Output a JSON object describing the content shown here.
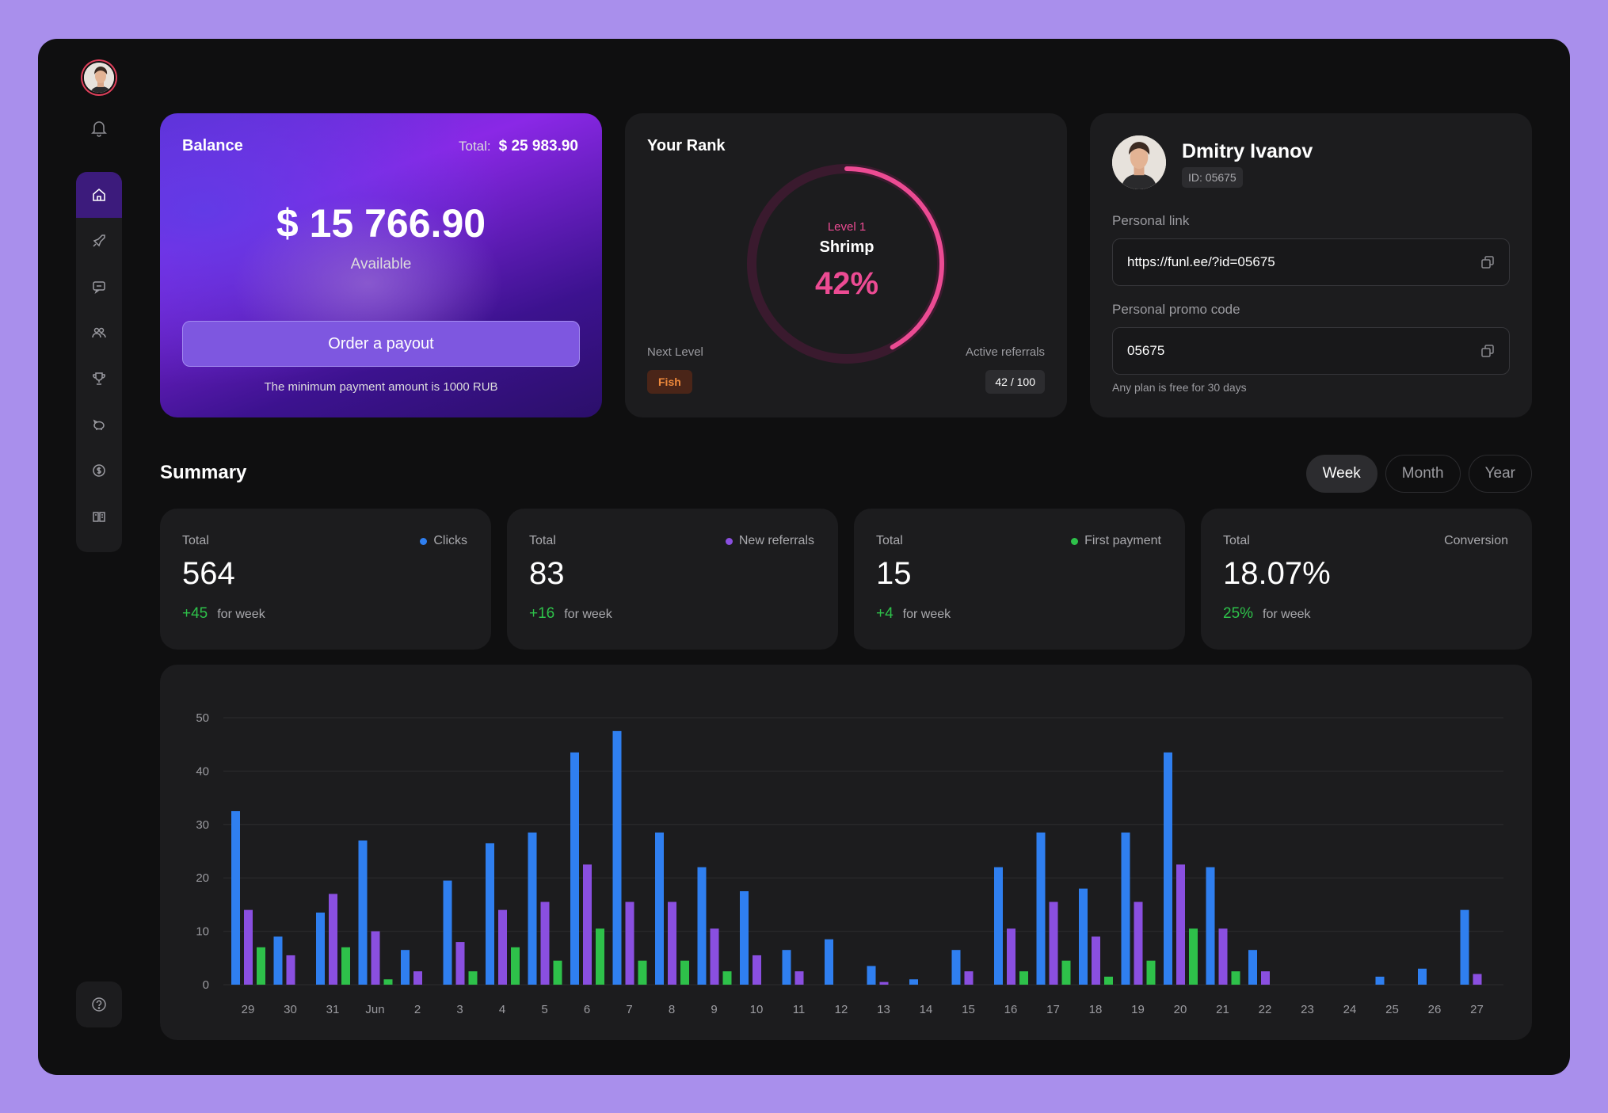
{
  "sidebar": {
    "items": [
      "home-icon",
      "rocket-icon",
      "chat-icon",
      "users-icon",
      "trophy-icon",
      "piggy-bank-icon",
      "coin-icon",
      "book-icon"
    ],
    "help": "help-icon"
  },
  "balance": {
    "title": "Balance",
    "total_label": "Total:",
    "total_value": "$ 25 983.90",
    "amount": "$ 15 766.90",
    "available_label": "Available",
    "payout_button": "Order a payout",
    "min_note": "The minimum payment amount is 1000 RUB"
  },
  "rank": {
    "title": "Your Rank",
    "level": "Level 1",
    "name": "Shrimp",
    "percent": "42%",
    "progress": 0.42,
    "next_level_label": "Next Level",
    "next_level": "Fish",
    "active_referrals_label": "Active referrals",
    "active_referrals": "42 / 100"
  },
  "profile": {
    "name": "Dmitry Ivanov",
    "id": "ID: 05675",
    "personal_link_label": "Personal link",
    "personal_link": "https://funl.ee/?id=05675",
    "promo_label": "Personal promo code",
    "promo_code": "05675",
    "free_note": "Any plan is free for 30 days"
  },
  "summary": {
    "title": "Summary",
    "tabs": [
      "Week",
      "Month",
      "Year"
    ],
    "active_tab": "Week",
    "stats": [
      {
        "total_label": "Total",
        "legend": "Clicks",
        "color": "#2f7ff0",
        "value": "564",
        "delta": "+45",
        "delta_label": "for week"
      },
      {
        "total_label": "Total",
        "legend": "New referrals",
        "color": "#8a4fe0",
        "value": "83",
        "delta": "+16",
        "delta_label": "for week"
      },
      {
        "total_label": "Total",
        "legend": "First payment",
        "color": "#2ec14a",
        "value": "15",
        "delta": "+4",
        "delta_label": "for week"
      },
      {
        "total_label": "Total",
        "legend": "Conversion",
        "color": "",
        "value": "18.07%",
        "delta": "25%",
        "delta_label": "for week"
      }
    ]
  },
  "colors": {
    "clicks": "#2f7ff0",
    "referrals": "#8a4fe0",
    "payments": "#2ec14a",
    "accent": "#ec4b93",
    "fish": "#f08a3c"
  },
  "chart_data": {
    "type": "bar",
    "categories": [
      "29",
      "30",
      "31",
      "Jun",
      "2",
      "3",
      "4",
      "5",
      "6",
      "7",
      "8",
      "9",
      "10",
      "11",
      "12",
      "13",
      "14",
      "15",
      "16",
      "17",
      "18",
      "19",
      "20",
      "21",
      "22",
      "23",
      "24",
      "25",
      "26",
      "27"
    ],
    "series": [
      {
        "name": "Clicks",
        "color": "#2f7ff0",
        "values": [
          32.5,
          9,
          13.5,
          27,
          6.5,
          19.5,
          26.5,
          28.5,
          43.5,
          47.5,
          28.5,
          22,
          17.5,
          6.5,
          8.5,
          3.5,
          1,
          6.5,
          22,
          28.5,
          18,
          28.5,
          43.5,
          22,
          6.5,
          0,
          0,
          1.5,
          3,
          14
        ]
      },
      {
        "name": "New referrals",
        "color": "#8a4fe0",
        "values": [
          14,
          5.5,
          17,
          10,
          2.5,
          8,
          14,
          15.5,
          22.5,
          15.5,
          15.5,
          10.5,
          5.5,
          2.5,
          0,
          0.5,
          0,
          2.5,
          10.5,
          15.5,
          9,
          15.5,
          22.5,
          10.5,
          2.5,
          0,
          0,
          0,
          0,
          2
        ]
      },
      {
        "name": "First payment",
        "color": "#2ec14a",
        "values": [
          7,
          0,
          7,
          1,
          0,
          2.5,
          7,
          4.5,
          10.5,
          4.5,
          4.5,
          2.5,
          0,
          0,
          0,
          0,
          0,
          0,
          2.5,
          4.5,
          1.5,
          4.5,
          10.5,
          2.5,
          0,
          0,
          0,
          0,
          0,
          0
        ]
      }
    ],
    "yticks": [
      0,
      10,
      20,
      30,
      40,
      50
    ],
    "ylim": [
      0,
      50
    ],
    "grid": true
  }
}
